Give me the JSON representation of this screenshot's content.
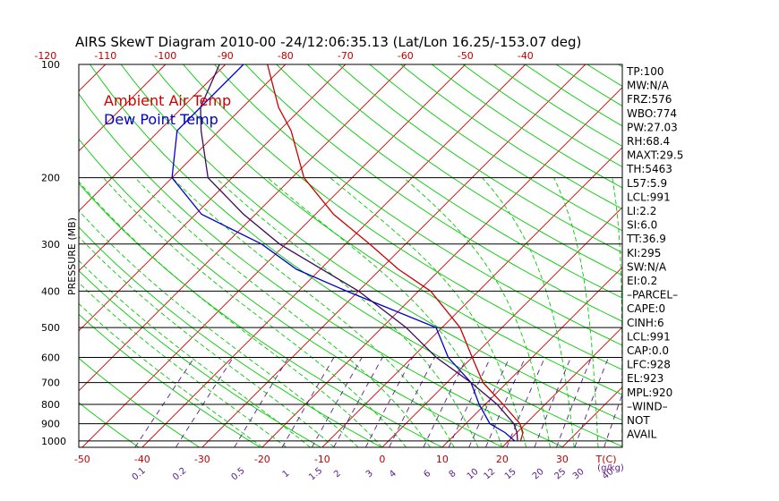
{
  "title": "AIRS SkewT Diagram 2010-00 -24/12:06:35.13 (Lat/Lon 16.25/-153.07 deg)",
  "colors": {
    "temp": "#cc0000",
    "dew": "#0000cc",
    "parcel": "#3b0a5a",
    "isotherm": "#cc0000",
    "dry_adiabat": "#00cc00",
    "moist_adiabat": "#00cc00",
    "mixing_ratio": "#5a1a8a",
    "isobar": "#000000"
  },
  "legend": [
    "Ambient Air Temp",
    "Dew Point Temp"
  ],
  "ylabel": "PRESSURE (MB)",
  "top_ticks": [
    "-120",
    "-110",
    "-100",
    "-90",
    "-80",
    "-70",
    "-60",
    "-50",
    "-40"
  ],
  "bottom_ticks": [
    "-50",
    "-40",
    "-30",
    "-20",
    "-10",
    "0",
    "10",
    "20",
    "30"
  ],
  "bottom_unit": "T(C)",
  "mixing_ratio_labels": [
    "0.1",
    "0.2",
    "0.5",
    "1",
    "1.5",
    "2",
    "3",
    "4",
    "6",
    "8",
    "10",
    "12",
    "15",
    "20",
    "25",
    "30",
    "40"
  ],
  "mixing_ratio_unit": "(g/kg)",
  "indices": [
    "TP:100",
    "MW:N/A",
    "FRZ:576",
    "WBO:774",
    "PW:27.03",
    "RH:68.4",
    "MAXT:29.5",
    "TH:5463",
    "L57:5.9",
    "LCL:991",
    "LI:2.2",
    "SI:6.0",
    "TT:36.9",
    "KI:295",
    "SW:N/A",
    "EI:0.2",
    "–PARCEL–",
    "CAPE:0",
    "CINH:6",
    "LCL:991",
    "CAP:0.0",
    "LFC:928",
    "EL:923",
    "MPL:920",
    "–WIND–",
    "NOT",
    "AVAIL"
  ],
  "chart_data": {
    "type": "line",
    "title": "AIRS SkewT Diagram 2010-00 -24/12:06:35.13 (Lat/Lon 16.25/-153.07 deg)",
    "ylabel": "PRESSURE (MB)",
    "xlabel": "T(C)",
    "pressure_levels": [
      100,
      200,
      300,
      400,
      500,
      600,
      700,
      800,
      900,
      1000
    ],
    "y_scale": "log",
    "ylim": [
      1040,
      100
    ],
    "series": [
      {
        "name": "Ambient Air Temp",
        "points": [
          [
            100,
            -83
          ],
          [
            130,
            -74
          ],
          [
            150,
            -68
          ],
          [
            200,
            -58
          ],
          [
            250,
            -47
          ],
          [
            300,
            -36
          ],
          [
            350,
            -27
          ],
          [
            400,
            -18
          ],
          [
            500,
            -7
          ],
          [
            600,
            0
          ],
          [
            700,
            6
          ],
          [
            800,
            13
          ],
          [
            900,
            19
          ],
          [
            950,
            21
          ],
          [
            1000,
            22
          ]
        ]
      },
      {
        "name": "Dew Point Temp",
        "points": [
          [
            100,
            -87
          ],
          [
            150,
            -87
          ],
          [
            200,
            -80
          ],
          [
            250,
            -69
          ],
          [
            300,
            -54
          ],
          [
            350,
            -44
          ],
          [
            400,
            -32
          ],
          [
            500,
            -11
          ],
          [
            600,
            -4
          ],
          [
            700,
            4
          ],
          [
            800,
            9
          ],
          [
            900,
            14
          ],
          [
            950,
            18
          ],
          [
            1000,
            21
          ]
        ]
      },
      {
        "name": "",
        "points": [
          [
            100,
            -91
          ],
          [
            130,
            -87
          ],
          [
            150,
            -83
          ],
          [
            200,
            -74
          ],
          [
            250,
            -62
          ],
          [
            300,
            -51
          ],
          [
            400,
            -30
          ],
          [
            500,
            -16
          ],
          [
            600,
            -6
          ],
          [
            700,
            4
          ],
          [
            800,
            12
          ],
          [
            900,
            18
          ],
          [
            950,
            20
          ],
          [
            1000,
            21.5
          ]
        ]
      }
    ]
  }
}
